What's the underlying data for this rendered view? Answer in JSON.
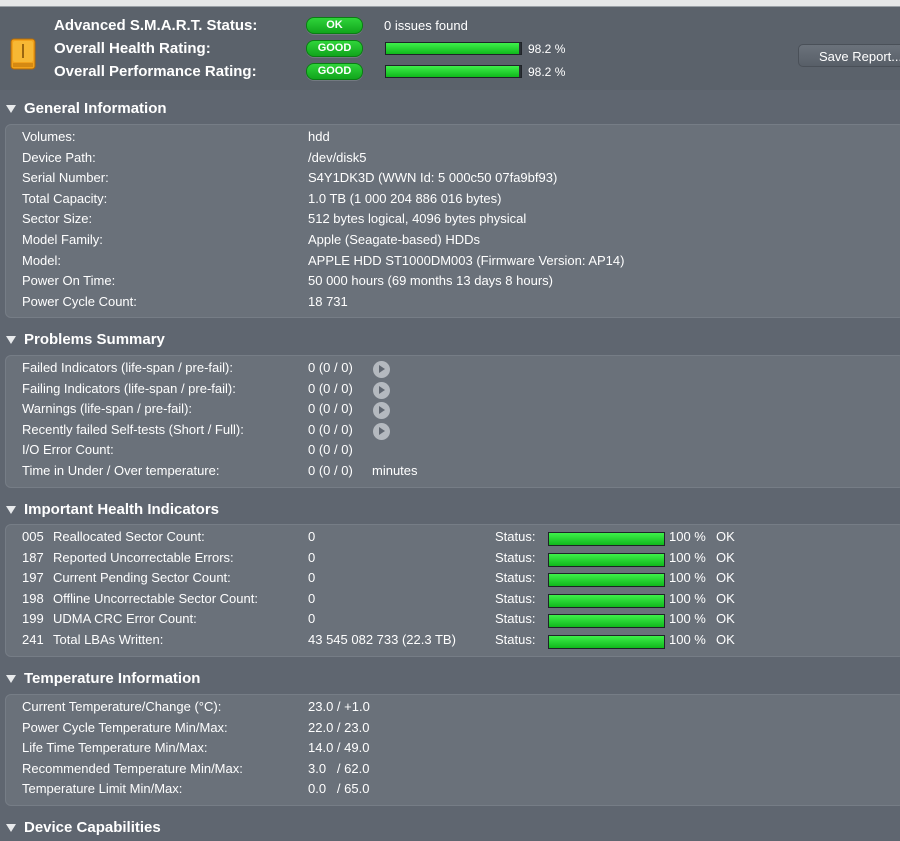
{
  "summary": {
    "smart_label": "Advanced S.M.A.R.T. Status:",
    "smart_pill": "OK",
    "smart_text": "0 issues found",
    "health_label": "Overall Health Rating:",
    "health_pill": "GOOD",
    "health_percent": 98.2,
    "health_text": "98.2 %",
    "perf_label": "Overall Performance Rating:",
    "perf_pill": "GOOD",
    "perf_percent": 98.2,
    "perf_text": "98.2 %",
    "save_button": "Save Report..."
  },
  "general": {
    "title": "General Information",
    "rows": [
      {
        "label": "Volumes:",
        "value": "hdd"
      },
      {
        "label": "Device Path:",
        "value": "/dev/disk5"
      },
      {
        "label": "Serial Number:",
        "value": "S4Y1DK3D (WWN Id: 5 000c50 07fa9bf93)"
      },
      {
        "label": "Total Capacity:",
        "value": "1.0 TB (1 000 204 886 016 bytes)"
      },
      {
        "label": "Sector Size:",
        "value": "512 bytes logical, 4096 bytes physical"
      },
      {
        "label": "Model Family:",
        "value": "Apple (Seagate-based) HDDs"
      },
      {
        "label": "Model:",
        "value": "APPLE HDD ST1000DM003  (Firmware Version: AP14)"
      },
      {
        "label": "Power On Time:",
        "value": "50 000 hours (69 months 13 days 8 hours)"
      },
      {
        "label": "Power Cycle Count:",
        "value": "18 731"
      }
    ]
  },
  "problems": {
    "title": "Problems Summary",
    "rows": [
      {
        "label": "Failed Indicators (life-span / pre-fail):",
        "value": "0 (0 / 0)"
      },
      {
        "label": "Failing Indicators (life-span / pre-fail):",
        "value": "0 (0 / 0)"
      },
      {
        "label": "Warnings (life-span / pre-fail):",
        "value": "0 (0 / 0)"
      },
      {
        "label": "Recently failed Self-tests (Short / Full):",
        "value": "0 (0 / 0)"
      },
      {
        "label": "I/O Error Count:",
        "value": "0 (0 / 0)"
      },
      {
        "label": "Time in Under / Over temperature:",
        "value": "0 (0 / 0)",
        "unit": "minutes"
      }
    ]
  },
  "health": {
    "title": "Important Health Indicators",
    "status_label": "Status:",
    "rows": [
      {
        "id": "005",
        "name": "Reallocated Sector Count:",
        "value": "0",
        "percent": 100,
        "pct_text": "100 %",
        "state": "OK"
      },
      {
        "id": "187",
        "name": "Reported Uncorrectable Errors:",
        "value": "0",
        "percent": 100,
        "pct_text": "100 %",
        "state": "OK"
      },
      {
        "id": "197",
        "name": "Current Pending Sector Count:",
        "value": "0",
        "percent": 100,
        "pct_text": "100 %",
        "state": "OK"
      },
      {
        "id": "198",
        "name": "Offline Uncorrectable Sector Count:",
        "value": "0",
        "percent": 100,
        "pct_text": "100 %",
        "state": "OK"
      },
      {
        "id": "199",
        "name": "UDMA CRC Error Count:",
        "value": "0",
        "percent": 100,
        "pct_text": "100 %",
        "state": "OK"
      },
      {
        "id": "241",
        "name": "Total LBAs Written:",
        "value": "43 545 082 733 (22.3 TB)",
        "percent": 100,
        "pct_text": "100 %",
        "state": "OK"
      }
    ]
  },
  "temperature": {
    "title": "Temperature Information",
    "rows": [
      {
        "label": "Current Temperature/Change (°C):",
        "value": "23.0 / +1.0"
      },
      {
        "label": "Power Cycle Temperature Min/Max:",
        "value": "22.0 / 23.0"
      },
      {
        "label": "Life Time Temperature Min/Max:",
        "value": "14.0 / 49.0"
      },
      {
        "label": "Recommended Temperature Min/Max:",
        "value": "3.0   / 62.0"
      },
      {
        "label": "Temperature Limit Min/Max:",
        "value": "0.0   / 65.0"
      }
    ]
  },
  "capabilities": {
    "title": "Device Capabilities"
  },
  "colors": {
    "background": "#5f6670",
    "panel": "#6a717a",
    "good_green": "#1fc42a"
  }
}
